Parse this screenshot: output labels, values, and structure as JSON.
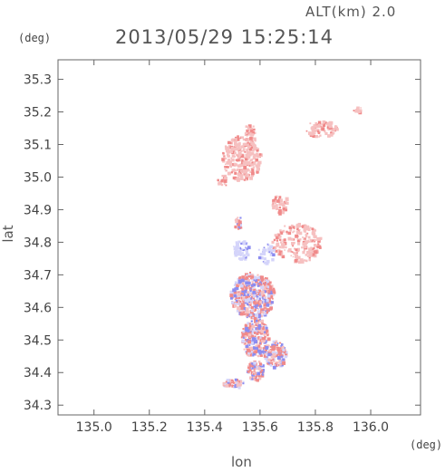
{
  "chart_data": {
    "type": "heatmap",
    "title": "2013/05/29 15:25:14",
    "altitude_label": "ALT(km) 2.0",
    "xlabel": "lon",
    "ylabel": "lat",
    "x_unit": "(deg)",
    "y_unit": "(deg)",
    "xlim": [
      134.87,
      136.18
    ],
    "ylim": [
      34.27,
      35.36
    ],
    "x_ticks": [
      "135.0",
      "135.2",
      "135.4",
      "135.6",
      "135.8",
      "136.0"
    ],
    "y_ticks": [
      "34.3",
      "34.4",
      "34.5",
      "34.6",
      "34.7",
      "34.8",
      "34.9",
      "35.0",
      "35.1",
      "35.2",
      "35.3"
    ],
    "grid": false,
    "colors": {
      "positive": "#f08a8a",
      "positive_light": "#f6c0c0",
      "negative": "#8c8cf0",
      "negative_light": "#d4d4fa",
      "frame": "#666666"
    },
    "regions": [
      {
        "lon": 135.53,
        "lat": 35.06,
        "rlon": 0.07,
        "rlat": 0.07,
        "sign": "positive",
        "intensity": 0.55
      },
      {
        "lon": 135.56,
        "lat": 35.13,
        "rlon": 0.02,
        "rlat": 0.04,
        "sign": "positive",
        "intensity": 0.5
      },
      {
        "lon": 135.82,
        "lat": 35.15,
        "rlon": 0.06,
        "rlat": 0.025,
        "sign": "positive",
        "intensity": 0.55
      },
      {
        "lon": 135.95,
        "lat": 35.21,
        "rlon": 0.015,
        "rlat": 0.01,
        "sign": "positive",
        "intensity": 0.5
      },
      {
        "lon": 135.67,
        "lat": 34.92,
        "rlon": 0.03,
        "rlat": 0.03,
        "sign": "positive",
        "intensity": 0.45
      },
      {
        "lon": 135.73,
        "lat": 34.8,
        "rlon": 0.09,
        "rlat": 0.06,
        "sign": "positive",
        "intensity": 0.35
      },
      {
        "lon": 135.62,
        "lat": 34.77,
        "rlon": 0.03,
        "rlat": 0.03,
        "sign": "negative",
        "intensity": 0.3
      },
      {
        "lon": 135.53,
        "lat": 34.78,
        "rlon": 0.03,
        "rlat": 0.03,
        "sign": "negative",
        "intensity": 0.55
      },
      {
        "lon": 135.57,
        "lat": 34.64,
        "rlon": 0.08,
        "rlat": 0.07,
        "sign": "mixed",
        "intensity": 0.8
      },
      {
        "lon": 135.58,
        "lat": 34.51,
        "rlon": 0.05,
        "rlat": 0.06,
        "sign": "mixed",
        "intensity": 0.8
      },
      {
        "lon": 135.65,
        "lat": 34.46,
        "rlon": 0.04,
        "rlat": 0.04,
        "sign": "mixed",
        "intensity": 0.8
      },
      {
        "lon": 135.58,
        "lat": 34.41,
        "rlon": 0.03,
        "rlat": 0.03,
        "sign": "mixed",
        "intensity": 0.85
      },
      {
        "lon": 135.5,
        "lat": 34.37,
        "rlon": 0.04,
        "rlat": 0.015,
        "sign": "mixed",
        "intensity": 0.7
      },
      {
        "lon": 135.52,
        "lat": 34.86,
        "rlon": 0.015,
        "rlat": 0.02,
        "sign": "mixed",
        "intensity": 0.6
      },
      {
        "lon": 135.46,
        "lat": 34.99,
        "rlon": 0.02,
        "rlat": 0.02,
        "sign": "positive",
        "intensity": 0.4
      }
    ]
  }
}
